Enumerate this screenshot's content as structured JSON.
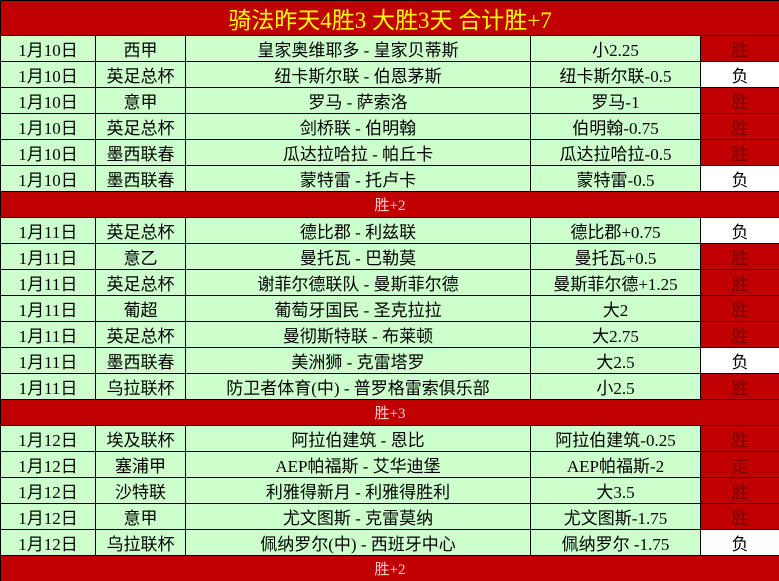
{
  "title": "骑法昨天4胜3 大胜3天 合计胜+7",
  "sections": [
    {
      "rows": [
        [
          "1月10日",
          "西甲",
          "皇家奥维耶多 - 皇家贝蒂斯",
          "小2.25",
          "胜"
        ],
        [
          "1月10日",
          "英足总杯",
          "纽卡斯尔联 - 伯恩茅斯",
          "纽卡斯尔联-0.5",
          "负"
        ],
        [
          "1月10日",
          "意甲",
          "罗马 - 萨索洛",
          "罗马-1",
          "胜"
        ],
        [
          "1月10日",
          "英足总杯",
          "剑桥联 - 伯明翰",
          "伯明翰-0.75",
          "胜"
        ],
        [
          "1月10日",
          "墨西联春",
          "瓜达拉哈拉 - 帕丘卡",
          "瓜达拉哈拉-0.5",
          "胜"
        ],
        [
          "1月10日",
          "墨西联春",
          "蒙特雷 - 托卢卡",
          "蒙特雷-0.5",
          "负"
        ]
      ],
      "result_fill": [
        "#c00000",
        "#ffffff",
        "#c00000",
        "#c00000",
        "#c00000",
        "#ffffff"
      ],
      "summary": "胜+2"
    },
    {
      "rows": [
        [
          "1月11日",
          "英足总杯",
          "德比郡 - 利兹联",
          "德比郡+0.75",
          "负"
        ],
        [
          "1月11日",
          "意乙",
          "曼托瓦 - 巴勒莫",
          "曼托瓦+0.5",
          "胜"
        ],
        [
          "1月11日",
          "英足总杯",
          "谢菲尔德联队 - 曼斯菲尔德",
          "曼斯菲尔德+1.25",
          "胜"
        ],
        [
          "1月11日",
          "葡超",
          "葡萄牙国民 - 圣克拉拉",
          "大2",
          "胜"
        ],
        [
          "1月11日",
          "英足总杯",
          "曼彻斯特联 - 布莱顿",
          "大2.75",
          "胜"
        ],
        [
          "1月11日",
          "墨西联春",
          "美洲狮 - 克雷塔罗",
          "大2.5",
          "负"
        ],
        [
          "1月11日",
          "乌拉联杯",
          "防卫者体育(中) - 普罗格雷索俱乐部",
          "小2.5",
          "胜"
        ]
      ],
      "result_fill": [
        "#ffffff",
        "#c00000",
        "#c00000",
        "#c00000",
        "#c00000",
        "#ffffff",
        "#c00000"
      ],
      "summary": "胜+3"
    },
    {
      "rows": [
        [
          "1月12日",
          "埃及联杯",
          "阿拉伯建筑 - 恩比",
          "阿拉伯建筑-0.25",
          "胜"
        ],
        [
          "1月12日",
          "塞浦甲",
          "AEP帕福斯 - 艾华迪堡",
          "AEP帕福斯-2",
          "走"
        ],
        [
          "1月12日",
          "沙特联",
          "利雅得新月 - 利雅得胜利",
          "大3.5",
          "胜"
        ],
        [
          "1月12日",
          "意甲",
          "尤文图斯 - 克雷莫纳",
          "尤文图斯-1.75",
          "胜"
        ],
        [
          "1月12日",
          "乌拉联杯",
          "佩纳罗尔(中) - 西班牙中心",
          "佩纳罗尔 -1.75",
          "负"
        ]
      ],
      "result_fill": [
        "#c00000",
        "#c00000",
        "#c00000",
        "#c00000",
        "#ffffff"
      ],
      "summary": "胜+2"
    }
  ]
}
